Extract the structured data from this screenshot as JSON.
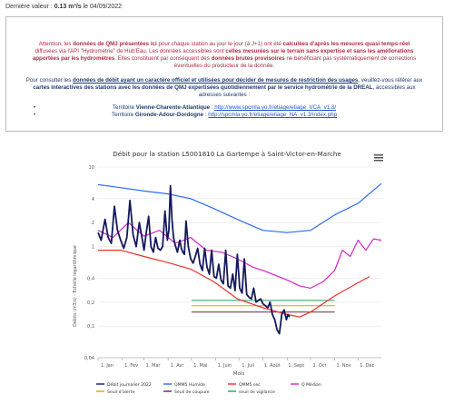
{
  "header": {
    "last_value_label": "Dernière valeur :",
    "last_value": "0.13 m³/s",
    "last_value_date": "le 04/09/2022"
  },
  "notice": {
    "warning_parts": [
      "Attention, les ",
      "données de QMJ présentées ici",
      " pour chaque station au jour le jour (à J+1) ont été ",
      "calculées d'après les mesures quasi temps-réel",
      " diffusées via l'API \"Hydrométrie\" de Hub'Eau. Les données accessibles sont ",
      "celles mesurées sur le terrain sans expertise et sans les améliorations apportées par les hydromètres",
      ". Elles constituent par conséquent des ",
      "données brutes provisoires",
      " ne bénéficiant pas systématiquement de corrections éventuelles du producteur de la donnée."
    ],
    "info_parts": [
      "Pour consulter les ",
      "données de débit ayant un caractère officiel",
      " et utilisées pour décider de mesures de restriction des usages",
      ", veuillez-vous référer aux ",
      "cartes interactives des stations avec les données de QMJ expertisées quotidiennement par le service hydrométrie de la DREAL",
      ", accessibles aux adresses suivantes :"
    ],
    "territories": [
      {
        "label": "Territoire ",
        "name": "Vienne-Charente-Atlantique",
        "sep": " : ",
        "url": "http://www.spcmla.yo.fr/etiage/etiage_VCA_v1.3/"
      },
      {
        "label": "Territoire ",
        "name": "Gironde-Adour-Dordogne",
        "sep": " : ",
        "url": "http://spcmla.yo.fr/etiage/etiage_NA_v1.3/index.php"
      }
    ]
  },
  "menu_icon": "hamburger-menu-icon",
  "chart_data": {
    "type": "line",
    "title": "Débit pour la station L5001810 La Gartempe à Saint-Victor-en-Marche",
    "xlabel": "Mois",
    "ylabel": "Débits (m3/s) - Echelle logarithmique",
    "y_scale": "log",
    "ylim": [
      0.04,
      10
    ],
    "y_ticks": [
      0.04,
      0.1,
      0.2,
      0.4,
      1,
      2,
      4,
      10
    ],
    "y_tick_labels": [
      "0,04",
      "0,1",
      "0,2",
      "0,4",
      "1",
      "2",
      "4",
      "10"
    ],
    "x_ticks": [
      1,
      32,
      60,
      91,
      121,
      152,
      182,
      213,
      244,
      274,
      305,
      335
    ],
    "x_tick_labels": [
      "1. Jan",
      "1. Fév",
      "1. Mar",
      "1. Avr",
      "1. Mai",
      "1. Juin",
      "1. Juil",
      "1. Août",
      "1. Sept",
      "1. Oct",
      "1. Nov",
      "1. Déc"
    ],
    "xlim": [
      1,
      365
    ],
    "grid": true,
    "legend_position": "bottom",
    "series": [
      {
        "name": "Débit journalier 2022",
        "color": "#14195c",
        "width": 1.8,
        "x": [
          1,
          5,
          10,
          14,
          18,
          22,
          26,
          30,
          34,
          38,
          42,
          46,
          50,
          54,
          58,
          60,
          63,
          66,
          69,
          72,
          75,
          78,
          81,
          84,
          87,
          90,
          92,
          94,
          96,
          98,
          100,
          103,
          106,
          108,
          110,
          112,
          114,
          117,
          120,
          123,
          126,
          129,
          132,
          135,
          138,
          141,
          144,
          147,
          150,
          153,
          156,
          159,
          162,
          165,
          168,
          171,
          174,
          177,
          180,
          183,
          186,
          189,
          192,
          195,
          198,
          201,
          204,
          207,
          210,
          213,
          216,
          219,
          222,
          225,
          228,
          231,
          234,
          237,
          240,
          243,
          245,
          247
        ],
        "y": [
          1.5,
          1.2,
          2.2,
          1.3,
          1.1,
          3.2,
          1.6,
          1.2,
          0.95,
          1.3,
          3.8,
          1.4,
          1.0,
          2.0,
          1.2,
          0.9,
          1.5,
          2.4,
          1.0,
          0.85,
          1.3,
          0.95,
          0.9,
          1.0,
          2.8,
          1.2,
          1.6,
          5.8,
          2.2,
          1.3,
          1.05,
          0.85,
          1.2,
          0.95,
          0.85,
          0.8,
          2.1,
          1.0,
          0.7,
          0.62,
          0.75,
          0.95,
          0.6,
          0.5,
          0.95,
          0.55,
          0.45,
          0.9,
          0.42,
          0.4,
          0.6,
          0.38,
          0.34,
          0.9,
          0.32,
          0.3,
          0.45,
          0.28,
          0.8,
          0.3,
          0.26,
          0.7,
          0.25,
          0.23,
          0.22,
          0.3,
          0.2,
          0.21,
          0.22,
          0.19,
          0.18,
          0.17,
          0.2,
          0.14,
          0.12,
          0.09,
          0.08,
          0.14,
          0.16,
          0.12,
          0.14,
          0.13
        ]
      },
      {
        "name": "QMM5 Humide",
        "color": "#2b6cf0",
        "width": 1.2,
        "x": [
          1,
          30,
          60,
          90,
          120,
          150,
          180,
          200,
          213,
          244,
          274,
          305,
          335,
          365
        ],
        "y": [
          6.0,
          5.5,
          5.0,
          4.6,
          4.0,
          3.0,
          2.2,
          1.8,
          1.6,
          1.5,
          1.6,
          2.5,
          3.5,
          6.2
        ]
      },
      {
        "name": "QMM5 sec",
        "color": "#e8342c",
        "width": 1.2,
        "x": [
          1,
          30,
          60,
          90,
          120,
          150,
          180,
          213,
          244,
          260,
          274,
          305,
          335,
          350
        ],
        "y": [
          0.9,
          0.9,
          0.75,
          0.63,
          0.52,
          0.36,
          0.22,
          0.17,
          0.14,
          0.13,
          0.15,
          0.24,
          0.35,
          0.42
        ]
      },
      {
        "name": "Q Médian",
        "color": "#d524c8",
        "width": 1.2,
        "x": [
          1,
          20,
          40,
          60,
          80,
          100,
          120,
          140,
          160,
          180,
          200,
          213,
          225,
          244,
          260,
          274,
          290,
          305,
          315,
          325,
          335,
          345,
          355,
          365
        ],
        "y": [
          1.6,
          1.3,
          2.0,
          1.35,
          1.6,
          1.1,
          1.3,
          0.9,
          0.85,
          0.7,
          0.55,
          0.5,
          0.45,
          0.38,
          0.32,
          0.3,
          0.36,
          0.5,
          0.9,
          0.75,
          1.2,
          0.9,
          1.25,
          1.2
        ]
      },
      {
        "name": "Seuil d'alerte",
        "color": "#e8a000",
        "width": 1,
        "x": [
          121,
          305
        ],
        "y": [
          0.18,
          0.18
        ]
      },
      {
        "name": "Seuil de coupure",
        "color": "#6b2343",
        "width": 1,
        "x": [
          121,
          305
        ],
        "y": [
          0.15,
          0.15
        ]
      },
      {
        "name": "seuil de vigilance",
        "color": "#26a65b",
        "width": 1,
        "x": [
          121,
          305
        ],
        "y": [
          0.21,
          0.21
        ]
      }
    ]
  }
}
